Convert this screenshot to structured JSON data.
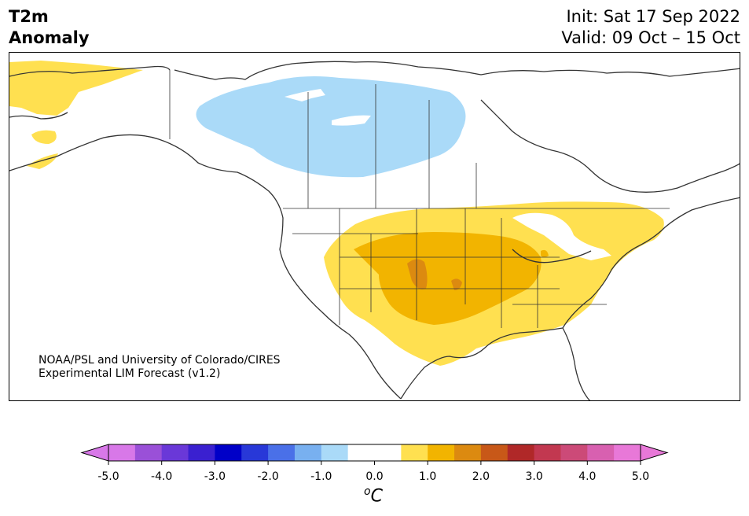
{
  "title": {
    "line1": "T2m",
    "line2": "Anomaly"
  },
  "dates": {
    "init": "Init: Sat 17 Sep 2022",
    "valid": "Valid: 09 Oct – 15 Oct"
  },
  "credit": {
    "line1": "NOAA/PSL and University of Colorado/CIRES",
    "line2": "Experimental LIM Forecast (v1.2)"
  },
  "colorbar": {
    "unit_superscript": "o",
    "unit_symbol": "C",
    "colors": [
      "#d878e8",
      "#9a50d8",
      "#6a38d8",
      "#3a20d0",
      "#0000c8",
      "#2838d8",
      "#4a70e8",
      "#78b0f0",
      "#aadaf8",
      "#ffffff",
      "#ffffff",
      "#ffe050",
      "#f2b400",
      "#dc8a10",
      "#c85818",
      "#b02828",
      "#c23850",
      "#cc4a78",
      "#d860b0",
      "#e878d8"
    ],
    "ticks": [
      "-5.0",
      "-4.0",
      "-3.0",
      "-2.0",
      "-1.0",
      "0.0",
      "1.0",
      "2.0",
      "3.0",
      "4.0",
      "5.0"
    ],
    "low_extend_color": "#d878e8",
    "high_extend_color": "#e878d8"
  },
  "fields": {
    "yellow": "#ffe050",
    "orange": "#f2b400",
    "dark_orange": "#dc8a10",
    "light_blue": "#aadaf8"
  }
}
